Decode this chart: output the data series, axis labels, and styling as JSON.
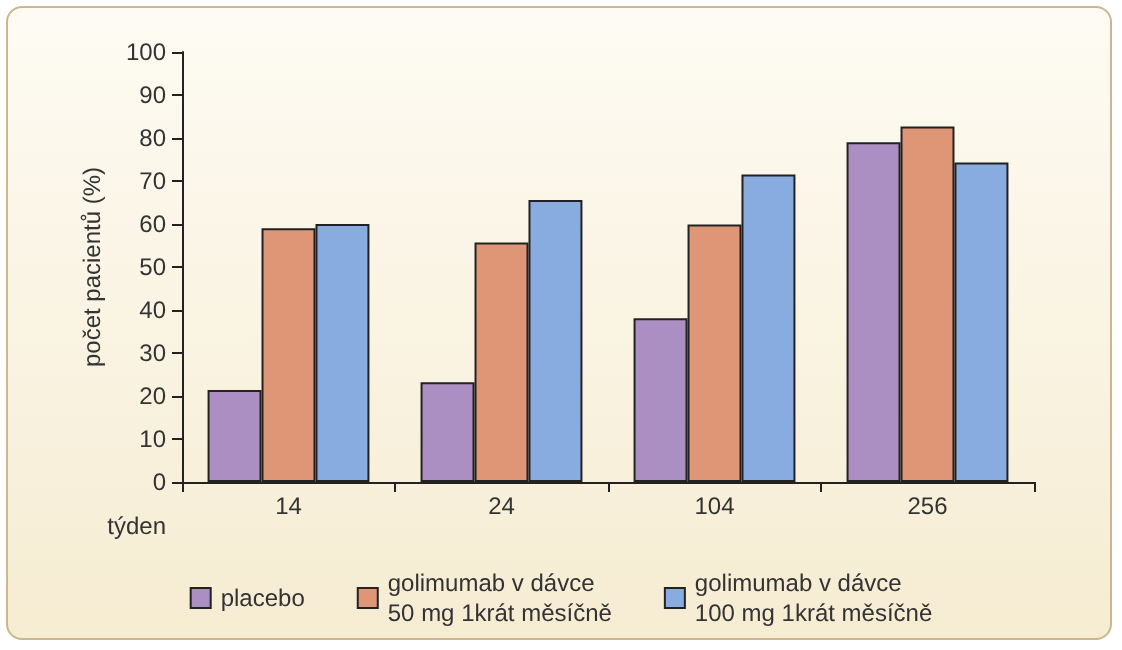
{
  "chart_data": {
    "type": "bar",
    "xlabel": "týden",
    "ylabel": "počet pacientů (%)",
    "categories": [
      "14",
      "24",
      "104",
      "256"
    ],
    "series": [
      {
        "name": "placebo",
        "color": "#ab8fc2",
        "values": [
          21.4,
          23.2,
          38.1,
          79
        ]
      },
      {
        "name": "golimumab v dávce\n50 mg 1krát měsíčně",
        "color": "#df9677",
        "values": [
          59,
          55.7,
          59.9,
          82.7
        ]
      },
      {
        "name": "golimumab v dávce\n100 mg 1krát měsíčně",
        "color": "#88abe0",
        "values": [
          60,
          65.6,
          71.5,
          74.3
        ]
      }
    ],
    "ylim": [
      0,
      100
    ],
    "yticks": [
      0,
      10,
      20,
      30,
      40,
      50,
      60,
      70,
      80,
      90,
      100
    ],
    "grid": false,
    "legend": "bottom"
  }
}
